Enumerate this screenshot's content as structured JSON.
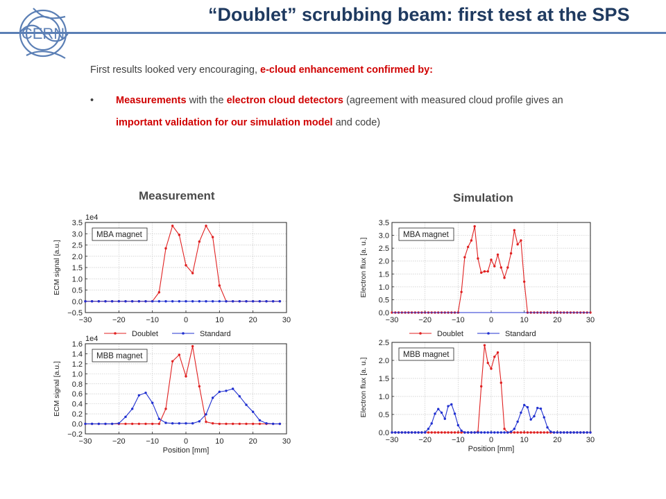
{
  "header": {
    "logo_text": "CERN",
    "title": "“Doublet” scrubbing beam: first test at the SPS"
  },
  "intro": {
    "prefix": "First results looked very encouraging, ",
    "highlight": "e-cloud enhancement confirmed by:"
  },
  "bullet": {
    "marker": "•",
    "parts": [
      {
        "text": "Measurements",
        "red": true
      },
      {
        "text": " with the ",
        "red": false
      },
      {
        "text": "electron cloud detectors",
        "red": true
      },
      {
        "text": " (agreement with measured cloud profile gives an ",
        "red": false
      },
      {
        "text": "important validation for our simulation model",
        "red": true
      },
      {
        "text": " and code)",
        "red": false
      }
    ]
  },
  "panels": {
    "left_title": "Measurement",
    "right_title": "Simulation"
  },
  "legend": {
    "doublet": "Doublet",
    "standard": "Standard",
    "doublet_color": "#e02020",
    "standard_color": "#2030d0"
  },
  "chart_data": [
    {
      "type": "line",
      "label": "MBA magnet",
      "xlabel": "",
      "ylabel": "ECM signal [a.u.]",
      "multiplier": "1e4",
      "xlim": [
        -30,
        30
      ],
      "ylim": [
        -0.5,
        3.5
      ],
      "xticks": [
        -30,
        -20,
        -10,
        0,
        10,
        20,
        30
      ],
      "yticks": [
        -0.5,
        0.0,
        0.5,
        1.0,
        1.5,
        2.0,
        2.5,
        3.0,
        3.5
      ],
      "ytick_labels": [
        "−0.5",
        "0.0",
        "0.5",
        "1.0",
        "1.5",
        "2.0",
        "2.5",
        "3.0",
        "3.5"
      ],
      "grid": true,
      "series": [
        {
          "name": "Doublet",
          "color": "#e02020",
          "x": [
            -30,
            -28,
            -26,
            -24,
            -22,
            -20,
            -18,
            -16,
            -14,
            -12,
            -10,
            -8,
            -6,
            -4,
            -2,
            0,
            2,
            4,
            6,
            8,
            10,
            12,
            14,
            16,
            18,
            20,
            22,
            24,
            26,
            28
          ],
          "y": [
            0,
            0,
            0,
            0,
            0,
            0,
            0,
            0,
            0,
            0,
            0,
            0.4,
            2.35,
            3.35,
            2.95,
            1.6,
            1.25,
            2.65,
            3.35,
            2.85,
            0.7,
            0,
            0,
            0,
            0,
            0,
            0,
            0,
            0,
            0
          ]
        },
        {
          "name": "Standard",
          "color": "#2030d0",
          "x": [
            -30,
            -28,
            -26,
            -24,
            -22,
            -20,
            -18,
            -16,
            -14,
            -12,
            -10,
            -8,
            -6,
            -4,
            -2,
            0,
            2,
            4,
            6,
            8,
            10,
            12,
            14,
            16,
            18,
            20,
            22,
            24,
            26,
            28
          ],
          "y": [
            0,
            0,
            0,
            0,
            0,
            0,
            0,
            0,
            0,
            0,
            0,
            0,
            0,
            0,
            0,
            0,
            0,
            0,
            0,
            0,
            0,
            0,
            0,
            0,
            0,
            0,
            0,
            0,
            0,
            0
          ]
        }
      ]
    },
    {
      "type": "line",
      "label": "MBB magnet",
      "xlabel": "Position [mm]",
      "ylabel": "ECM signal [a.u.]",
      "multiplier": "1e4",
      "xlim": [
        -30,
        30
      ],
      "ylim": [
        -0.2,
        1.6
      ],
      "xticks": [
        -30,
        -20,
        -10,
        0,
        10,
        20,
        30
      ],
      "yticks": [
        -0.2,
        0.0,
        0.2,
        0.4,
        0.6,
        0.8,
        1.0,
        1.2,
        1.4,
        1.6
      ],
      "ytick_labels": [
        "−0.2",
        "0.0",
        "0.2",
        "0.4",
        "0.6",
        "0.8",
        "1.0",
        "1.2",
        "1.4",
        "1.6"
      ],
      "grid": true,
      "series": [
        {
          "name": "Doublet",
          "color": "#e02020",
          "x": [
            -30,
            -28,
            -26,
            -24,
            -22,
            -20,
            -18,
            -16,
            -14,
            -12,
            -10,
            -8,
            -6,
            -4,
            -2,
            0,
            2,
            4,
            6,
            8,
            10,
            12,
            14,
            16,
            18,
            20,
            22,
            24,
            26,
            28
          ],
          "y": [
            0,
            0,
            0,
            0,
            0,
            0,
            0,
            0,
            0,
            0,
            0,
            0,
            0.3,
            1.25,
            1.38,
            0.95,
            1.55,
            0.75,
            0.04,
            0.01,
            0,
            0,
            0,
            0,
            0,
            0,
            0,
            0,
            0,
            0
          ]
        },
        {
          "name": "Standard",
          "color": "#2030d0",
          "x": [
            -30,
            -28,
            -26,
            -24,
            -22,
            -20,
            -18,
            -16,
            -14,
            -12,
            -10,
            -8,
            -6,
            -4,
            -2,
            0,
            2,
            4,
            6,
            8,
            10,
            12,
            14,
            16,
            18,
            20,
            22,
            24,
            26,
            28
          ],
          "y": [
            0,
            0,
            0,
            0,
            0,
            0.01,
            0.14,
            0.3,
            0.57,
            0.62,
            0.42,
            0.1,
            0.02,
            0.01,
            0.01,
            0.01,
            0.01,
            0.05,
            0.19,
            0.52,
            0.64,
            0.66,
            0.7,
            0.55,
            0.38,
            0.24,
            0.07,
            0.01,
            0,
            0
          ]
        }
      ]
    },
    {
      "type": "line",
      "label": "MBA magnet",
      "xlabel": "",
      "ylabel": "Electron flux [a. u.]",
      "multiplier": "",
      "xlim": [
        -30,
        30
      ],
      "ylim": [
        0,
        3.5
      ],
      "xticks": [
        -30,
        -20,
        -10,
        0,
        10,
        20,
        30
      ],
      "yticks": [
        0.0,
        0.5,
        1.0,
        1.5,
        2.0,
        2.5,
        3.0,
        3.5
      ],
      "ytick_labels": [
        "0.0",
        "0.5",
        "1.0",
        "1.5",
        "2.0",
        "2.5",
        "3.0",
        "3.5"
      ],
      "grid": true,
      "series": [
        {
          "name": "Doublet",
          "color": "#e02020",
          "x": [
            -30,
            -29,
            -28,
            -27,
            -26,
            -25,
            -24,
            -23,
            -22,
            -21,
            -20,
            -19,
            -18,
            -17,
            -16,
            -15,
            -14,
            -13,
            -12,
            -11,
            -10,
            -9,
            -8,
            -7,
            -6,
            -5,
            -4,
            -3,
            -2,
            -1,
            0,
            1,
            2,
            3,
            4,
            5,
            6,
            7,
            8,
            9,
            10,
            11,
            12,
            13,
            14,
            15,
            16,
            17,
            18,
            19,
            20,
            21,
            22,
            23,
            24,
            25,
            26,
            27,
            28,
            29,
            30
          ],
          "y": [
            0,
            0,
            0,
            0,
            0,
            0,
            0,
            0,
            0,
            0,
            0,
            0,
            0,
            0,
            0,
            0,
            0,
            0,
            0,
            0,
            0,
            0.8,
            2.15,
            2.55,
            2.8,
            3.35,
            2.1,
            1.55,
            1.6,
            1.6,
            2.05,
            1.8,
            2.25,
            1.75,
            1.35,
            1.75,
            2.3,
            3.2,
            2.65,
            2.8,
            1.2,
            0,
            0,
            0,
            0,
            0,
            0,
            0,
            0,
            0,
            0,
            0,
            0,
            0,
            0,
            0,
            0,
            0,
            0,
            0,
            0
          ]
        },
        {
          "name": "Standard",
          "color": "#2030d0",
          "x": [
            -30,
            30
          ],
          "y": [
            0,
            0
          ]
        }
      ]
    },
    {
      "type": "line",
      "label": "MBB magnet",
      "xlabel": "Position [mm]",
      "ylabel": "Electron flux [a. u.]",
      "multiplier": "",
      "xlim": [
        -30,
        30
      ],
      "ylim": [
        0,
        2.5
      ],
      "xticks": [
        -30,
        -20,
        -10,
        0,
        10,
        20,
        30
      ],
      "yticks": [
        0.0,
        0.5,
        1.0,
        1.5,
        2.0,
        2.5
      ],
      "ytick_labels": [
        "0.0",
        "0.5",
        "1.0",
        "1.5",
        "2.0",
        "2.5"
      ],
      "grid": true,
      "series": [
        {
          "name": "Doublet",
          "color": "#e02020",
          "x": [
            -30,
            -29,
            -28,
            -27,
            -26,
            -25,
            -24,
            -23,
            -22,
            -21,
            -20,
            -19,
            -18,
            -17,
            -16,
            -15,
            -14,
            -13,
            -12,
            -11,
            -10,
            -9,
            -8,
            -7,
            -6,
            -5,
            -4,
            -3,
            -2,
            -1,
            0,
            1,
            2,
            3,
            4,
            5,
            6,
            7,
            8,
            9,
            10,
            11,
            12,
            13,
            14,
            15,
            16,
            17,
            18,
            19,
            20,
            21,
            22,
            23,
            24,
            25,
            26,
            27,
            28,
            29,
            30
          ],
          "y": [
            0,
            0,
            0,
            0,
            0,
            0,
            0,
            0,
            0,
            0,
            0,
            0,
            0,
            0,
            0,
            0,
            0,
            0,
            0,
            0,
            0,
            0,
            0,
            0,
            0,
            0,
            0.02,
            1.28,
            2.42,
            1.93,
            1.77,
            2.1,
            2.22,
            1.38,
            0.1,
            0,
            0,
            0,
            0,
            0,
            0,
            0,
            0,
            0,
            0,
            0,
            0,
            0,
            0,
            0,
            0,
            0,
            0,
            0,
            0,
            0,
            0,
            0,
            0,
            0,
            0
          ]
        },
        {
          "name": "Standard",
          "color": "#2030d0",
          "x": [
            -30,
            -29,
            -28,
            -27,
            -26,
            -25,
            -24,
            -23,
            -22,
            -21,
            -20,
            -19,
            -18,
            -17,
            -16,
            -15,
            -14,
            -13,
            -12,
            -11,
            -10,
            -9,
            -8,
            -7,
            -6,
            -5,
            -4,
            -3,
            -2,
            -1,
            0,
            1,
            2,
            3,
            4,
            5,
            6,
            7,
            8,
            9,
            10,
            11,
            12,
            13,
            14,
            15,
            16,
            17,
            18,
            19,
            20,
            21,
            22,
            23,
            24,
            25,
            26,
            27,
            28,
            29,
            30
          ],
          "y": [
            0,
            0,
            0,
            0,
            0,
            0,
            0,
            0,
            0,
            0,
            0,
            0.1,
            0.25,
            0.52,
            0.65,
            0.55,
            0.38,
            0.73,
            0.78,
            0.52,
            0.2,
            0.05,
            0,
            0,
            0,
            0,
            0,
            0,
            0,
            0,
            0,
            0,
            0,
            0,
            0,
            0,
            0.02,
            0.1,
            0.3,
            0.55,
            0.76,
            0.7,
            0.36,
            0.45,
            0.68,
            0.66,
            0.42,
            0.14,
            0.02,
            0,
            0,
            0,
            0,
            0,
            0,
            0,
            0,
            0,
            0,
            0,
            0
          ]
        }
      ]
    }
  ]
}
